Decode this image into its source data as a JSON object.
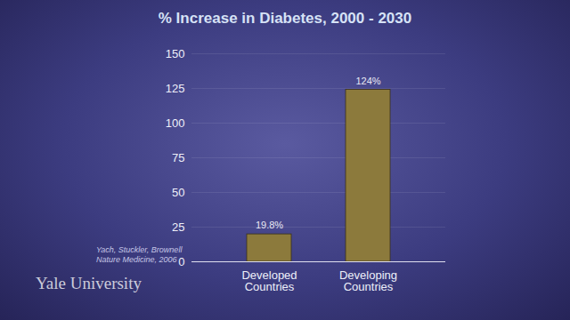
{
  "chart_data": {
    "type": "bar",
    "title": "% Increase in Diabetes, 2000 - 2030",
    "categories": [
      "Developed Countries",
      "Developing Countries"
    ],
    "values": [
      19.8,
      124
    ],
    "value_labels": [
      "19.8%",
      "124%"
    ],
    "data_labels": true,
    "color": "#8c7a3c",
    "ylim": [
      0,
      150
    ],
    "yticks": [
      0,
      25,
      50,
      75,
      100,
      125,
      150
    ],
    "grid": true,
    "source": [
      "Yach, Stuckler, Brownell",
      "Nature Medicine, 2006"
    ],
    "watermark": "Yale University"
  }
}
